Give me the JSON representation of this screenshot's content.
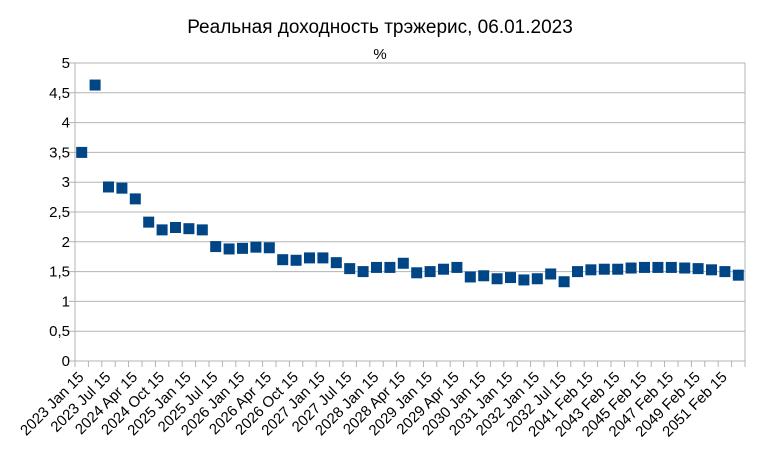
{
  "chart_data": {
    "type": "scatter",
    "title": "Реальная доходность трэжерис, 06.01.2023",
    "subtitle": "%",
    "xlabel": "",
    "ylabel": "",
    "ylim": [
      0,
      5
    ],
    "yticks": [
      "0",
      "0,5",
      "1",
      "1,5",
      "2",
      "2,5",
      "3",
      "3,5",
      "4",
      "4,5",
      "5"
    ],
    "grid": true,
    "legend": "none",
    "marker_color": "#004586",
    "x_tick_labels": [
      "2023 Jan 15",
      "2023 Jul 15",
      "2024 Apr 15",
      "2024 Oct 15",
      "2025 Jan 15",
      "2025 Jul 15",
      "2026 Jan 15",
      "2026 Apr 15",
      "2026 Oct 15",
      "2027 Jan 15",
      "2027 Jul 15",
      "2028 Jan 15",
      "2028 Apr 15",
      "2029 Jan 15",
      "2029 Apr 15",
      "2030 Jan 15",
      "2031 Jan 15",
      "2032 Jan 15",
      "2032 Jul 15",
      "2041 Feb 15",
      "2043 Feb 15",
      "2045 Feb 15",
      "2047 Feb 15",
      "2049 Feb 15",
      "2051 Feb 15"
    ],
    "values": [
      3.5,
      4.63,
      2.92,
      2.9,
      2.72,
      2.33,
      2.2,
      2.24,
      2.22,
      2.2,
      1.92,
      1.88,
      1.89,
      1.91,
      1.9,
      1.7,
      1.69,
      1.73,
      1.73,
      1.65,
      1.55,
      1.5,
      1.57,
      1.57,
      1.64,
      1.48,
      1.5,
      1.54,
      1.57,
      1.41,
      1.43,
      1.38,
      1.4,
      1.36,
      1.38,
      1.46,
      1.33,
      1.5,
      1.53,
      1.54,
      1.54,
      1.56,
      1.57,
      1.57,
      1.57,
      1.56,
      1.55,
      1.53,
      1.5,
      1.44
    ]
  }
}
